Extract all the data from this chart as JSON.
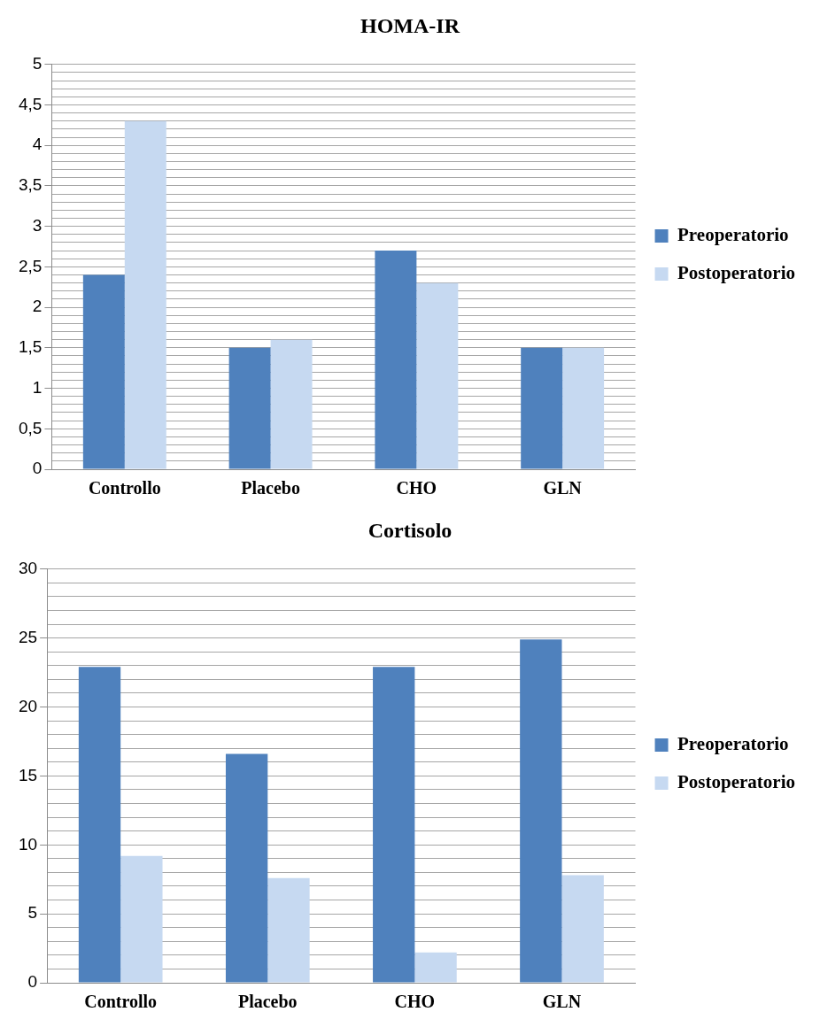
{
  "chart_data": [
    {
      "type": "bar",
      "title": "HOMA-IR",
      "categories": [
        "Controllo",
        "Placebo",
        "CHO",
        "GLN"
      ],
      "series": [
        {
          "name": "Preoperatorio",
          "color": "#4f81bd",
          "values": [
            2.4,
            1.5,
            2.7,
            1.5
          ]
        },
        {
          "name": "Postoperatorio",
          "color": "#c6d9f1",
          "values": [
            4.3,
            1.6,
            2.3,
            1.5
          ]
        }
      ],
      "ylim": [
        0,
        5
      ],
      "yticks": [
        0,
        {
          "value": 0.1,
          "label": null
        },
        {
          "value": 0.2,
          "label": null
        },
        {
          "value": 0.3,
          "label": null
        },
        {
          "value": 0.4,
          "label": null
        },
        {
          "value": 0.5,
          "label": "0,5"
        },
        {
          "value": 0.6,
          "label": null
        },
        {
          "value": 0.7,
          "label": null
        },
        {
          "value": 0.8,
          "label": null
        },
        {
          "value": 0.9,
          "label": null
        },
        1,
        {
          "value": 1.1,
          "label": null
        },
        {
          "value": 1.2,
          "label": null
        },
        {
          "value": 1.3,
          "label": null
        },
        {
          "value": 1.4,
          "label": null
        },
        {
          "value": 1.5,
          "label": "1,5"
        },
        {
          "value": 1.6,
          "label": null
        },
        {
          "value": 1.7,
          "label": null
        },
        {
          "value": 1.8,
          "label": null
        },
        {
          "value": 1.9,
          "label": null
        },
        2,
        {
          "value": 2.1,
          "label": null
        },
        {
          "value": 2.2,
          "label": null
        },
        {
          "value": 2.3,
          "label": null
        },
        {
          "value": 2.4,
          "label": null
        },
        {
          "value": 2.5,
          "label": "2,5"
        },
        {
          "value": 2.6,
          "label": null
        },
        {
          "value": 2.7,
          "label": null
        },
        {
          "value": 2.8,
          "label": null
        },
        {
          "value": 2.9,
          "label": null
        },
        3,
        {
          "value": 3.1,
          "label": null
        },
        {
          "value": 3.2,
          "label": null
        },
        {
          "value": 3.3,
          "label": null
        },
        {
          "value": 3.4,
          "label": null
        },
        {
          "value": 3.5,
          "label": "3,5"
        },
        {
          "value": 3.6,
          "label": null
        },
        {
          "value": 3.7,
          "label": null
        },
        {
          "value": 3.8,
          "label": null
        },
        {
          "value": 3.9,
          "label": null
        },
        4,
        {
          "value": 4.1,
          "label": null
        },
        {
          "value": 4.2,
          "label": null
        },
        {
          "value": 4.3,
          "label": null
        },
        {
          "value": 4.4,
          "label": null
        },
        {
          "value": 4.5,
          "label": "4,5"
        },
        {
          "value": 4.6,
          "label": null
        },
        {
          "value": 4.7,
          "label": null
        },
        {
          "value": 4.8,
          "label": null
        },
        {
          "value": 4.9,
          "label": null
        },
        5
      ],
      "grid": "y",
      "legend": "right"
    },
    {
      "type": "bar",
      "title": "Cortisolo",
      "categories": [
        "Controllo",
        "Placebo",
        "CHO",
        "GLN"
      ],
      "series": [
        {
          "name": "Preoperatorio",
          "color": "#4f81bd",
          "values": [
            22.9,
            16.6,
            22.9,
            24.9
          ]
        },
        {
          "name": "Postoperatorio",
          "color": "#c6d9f1",
          "values": [
            9.2,
            7.6,
            2.2,
            7.8
          ]
        }
      ],
      "ylim": [
        0,
        30
      ],
      "yticks": [
        0,
        {
          "value": 1,
          "label": null
        },
        {
          "value": 2,
          "label": null
        },
        {
          "value": 3,
          "label": null
        },
        {
          "value": 4,
          "label": null
        },
        5,
        {
          "value": 6,
          "label": null
        },
        {
          "value": 7,
          "label": null
        },
        {
          "value": 8,
          "label": null
        },
        {
          "value": 9,
          "label": null
        },
        10,
        {
          "value": 11,
          "label": null
        },
        {
          "value": 12,
          "label": null
        },
        {
          "value": 13,
          "label": null
        },
        {
          "value": 14,
          "label": null
        },
        15,
        {
          "value": 16,
          "label": null
        },
        {
          "value": 17,
          "label": null
        },
        {
          "value": 18,
          "label": null
        },
        {
          "value": 19,
          "label": null
        },
        20,
        {
          "value": 21,
          "label": null
        },
        {
          "value": 22,
          "label": null
        },
        {
          "value": 23,
          "label": null
        },
        {
          "value": 24,
          "label": null
        },
        25,
        {
          "value": 26,
          "label": null
        },
        {
          "value": 27,
          "label": null
        },
        {
          "value": 28,
          "label": null
        },
        {
          "value": 29,
          "label": null
        },
        30
      ],
      "grid": "y",
      "legend": "right"
    }
  ]
}
